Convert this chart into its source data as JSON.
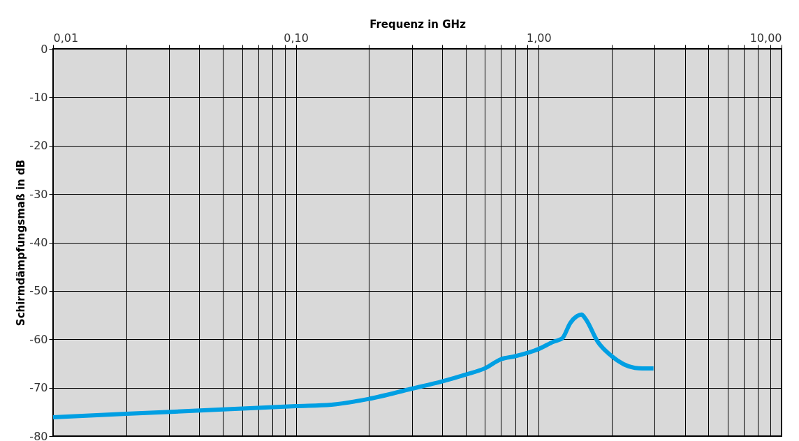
{
  "chart_data": {
    "type": "line",
    "xlabel": "Frequenz in GHz",
    "ylabel": "Schirmdämpfungsmaß in dB",
    "log": "x",
    "grid": true,
    "line_style": "solid",
    "marker": "none",
    "xlim": [
      0.01,
      10
    ],
    "ylim": [
      -80,
      0
    ],
    "xticks": [
      {
        "value": 0.01,
        "label": "0,01"
      },
      {
        "value": 0.02,
        "label": null
      },
      {
        "value": 0.03,
        "label": null
      },
      {
        "value": 0.04,
        "label": null
      },
      {
        "value": 0.05,
        "label": null
      },
      {
        "value": 0.06,
        "label": null
      },
      {
        "value": 0.07,
        "label": null
      },
      {
        "value": 0.08,
        "label": null
      },
      {
        "value": 0.09,
        "label": null
      },
      {
        "value": 0.1,
        "label": "0,10"
      },
      {
        "value": 0.2,
        "label": null
      },
      {
        "value": 0.3,
        "label": null
      },
      {
        "value": 0.4,
        "label": null
      },
      {
        "value": 0.5,
        "label": null
      },
      {
        "value": 0.6,
        "label": null
      },
      {
        "value": 0.7,
        "label": null
      },
      {
        "value": 0.8,
        "label": null
      },
      {
        "value": 0.9,
        "label": null
      },
      {
        "value": 1,
        "label": "1,00"
      },
      {
        "value": 2,
        "label": null
      },
      {
        "value": 3,
        "label": null
      },
      {
        "value": 4,
        "label": null
      },
      {
        "value": 5,
        "label": null
      },
      {
        "value": 6,
        "label": null
      },
      {
        "value": 7,
        "label": null
      },
      {
        "value": 8,
        "label": null
      },
      {
        "value": 9,
        "label": null
      },
      {
        "value": 10,
        "label": "10,00"
      }
    ],
    "yticks": [
      0,
      -10,
      -20,
      -30,
      -40,
      -50,
      -60,
      -70,
      -80
    ],
    "series": [
      {
        "color": "#009fe3",
        "x": [
          0.01,
          0.02,
          0.05,
          0.1,
          0.14,
          0.2,
          0.3,
          0.4,
          0.5,
          0.6,
          0.7,
          0.8,
          0.9,
          1.0,
          1.15,
          1.25,
          1.35,
          1.44,
          1.5,
          1.56,
          1.75,
          1.99,
          2.49,
          2.67,
          2.97
        ],
        "values": [
          -76.1,
          -75.4,
          -74.5,
          -73.8,
          -73.5,
          -72.3,
          -70.2,
          -68.7,
          -67.3,
          -66.0,
          -64.1,
          -63.5,
          -62.8,
          -62.0,
          -60.5,
          -59.8,
          -56.6,
          -55.2,
          -54.9,
          -55.8,
          -60.5,
          -63.4,
          -65.9,
          -66.0,
          -66.0
        ]
      }
    ]
  }
}
